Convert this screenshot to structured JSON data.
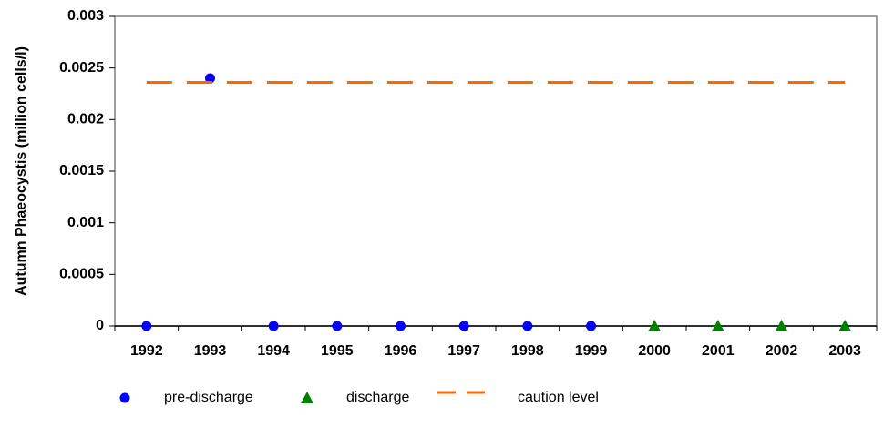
{
  "chart_data": {
    "type": "line",
    "y_label": "Autumn Phaeocystis (million cells/l)",
    "categories": [
      "1992",
      "1993",
      "1994",
      "1995",
      "1996",
      "1997",
      "1998",
      "1999",
      "2000",
      "2001",
      "2002",
      "2003"
    ],
    "series": [
      {
        "name": "pre-discharge",
        "color": "#0000ff",
        "marker": "circle",
        "values": [
          0,
          0.0024,
          0,
          0,
          0,
          0,
          0,
          0,
          null,
          null,
          null,
          null
        ]
      },
      {
        "name": "discharge",
        "color": "#008000",
        "marker": "triangle",
        "values": [
          null,
          null,
          null,
          null,
          null,
          null,
          null,
          null,
          0,
          0,
          0,
          0
        ]
      },
      {
        "name": "caution level",
        "color": "#ff6600",
        "marker": "dash",
        "values": [
          0.00236,
          0.00236,
          0.00236,
          0.00236,
          0.00236,
          0.00236,
          0.00236,
          0.00236,
          0.00236,
          0.00236,
          0.00236,
          0.00236
        ]
      }
    ],
    "ylim": [
      0,
      0.003
    ],
    "yticks": [
      0,
      0.0005,
      0.001,
      0.0015,
      0.002,
      0.0025,
      0.003
    ],
    "grid": false,
    "legend": "bottom"
  }
}
